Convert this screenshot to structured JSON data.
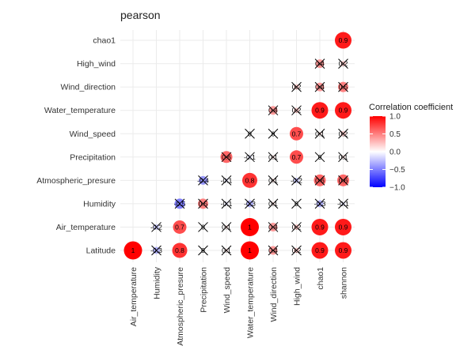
{
  "chart_data": {
    "type": "correlation-matrix",
    "title": "pearson",
    "x_variables": [
      "Air_temperature",
      "Humidity",
      "Atmospheric_presure",
      "Precipitation",
      "Wind_speed",
      "Water_temperature",
      "Wind_direction",
      "High_wind",
      "chao1",
      "shannon"
    ],
    "y_variables": [
      "Latitude",
      "Air_temperature",
      "Humidity",
      "Atmospheric_presure",
      "Precipitation",
      "Wind_speed",
      "Water_temperature",
      "Wind_direction",
      "High_wind",
      "chao1"
    ],
    "cells": [
      {
        "y": "Latitude",
        "x": "Air_temperature",
        "r": 1.0,
        "label": "1",
        "crossed": false
      },
      {
        "y": "Latitude",
        "x": "Humidity",
        "r": -0.3,
        "label": "-0.3",
        "crossed": true
      },
      {
        "y": "Latitude",
        "x": "Atmospheric_presure",
        "r": 0.8,
        "label": "0.8",
        "crossed": false
      },
      {
        "y": "Latitude",
        "x": "Precipitation",
        "r": 0.0,
        "label": "0",
        "crossed": true
      },
      {
        "y": "Latitude",
        "x": "Wind_speed",
        "r": 0.1,
        "label": "0.1",
        "crossed": true
      },
      {
        "y": "Latitude",
        "x": "Water_temperature",
        "r": 1.0,
        "label": "1",
        "crossed": false
      },
      {
        "y": "Latitude",
        "x": "Wind_direction",
        "r": 0.4,
        "label": "0.4",
        "crossed": true
      },
      {
        "y": "Latitude",
        "x": "High_wind",
        "r": 0.2,
        "label": "0.2",
        "crossed": true
      },
      {
        "y": "Latitude",
        "x": "chao1",
        "r": 0.9,
        "label": "0.9",
        "crossed": false
      },
      {
        "y": "Latitude",
        "x": "shannon",
        "r": 0.9,
        "label": "0.9",
        "crossed": false
      },
      {
        "y": "Air_temperature",
        "x": "Humidity",
        "r": -0.2,
        "label": "-0.2",
        "crossed": true
      },
      {
        "y": "Air_temperature",
        "x": "Atmospheric_presure",
        "r": 0.7,
        "label": "0.7",
        "crossed": false
      },
      {
        "y": "Air_temperature",
        "x": "Precipitation",
        "r": 0.0,
        "label": "0",
        "crossed": true
      },
      {
        "y": "Air_temperature",
        "x": "Wind_speed",
        "r": 0.1,
        "label": "0.1",
        "crossed": true
      },
      {
        "y": "Air_temperature",
        "x": "Water_temperature",
        "r": 1.0,
        "label": "1",
        "crossed": false
      },
      {
        "y": "Air_temperature",
        "x": "Wind_direction",
        "r": 0.4,
        "label": "0.4",
        "crossed": true
      },
      {
        "y": "Air_temperature",
        "x": "High_wind",
        "r": 0.2,
        "label": "0.2",
        "crossed": true
      },
      {
        "y": "Air_temperature",
        "x": "chao1",
        "r": 0.9,
        "label": "0.9",
        "crossed": false
      },
      {
        "y": "Air_temperature",
        "x": "shannon",
        "r": 0.9,
        "label": "0.9",
        "crossed": false
      },
      {
        "y": "Humidity",
        "x": "Atmospheric_presure",
        "r": -0.5,
        "label": "-0.5",
        "crossed": true
      },
      {
        "y": "Humidity",
        "x": "Precipitation",
        "r": 0.5,
        "label": "0.5",
        "crossed": true
      },
      {
        "y": "Humidity",
        "x": "Wind_speed",
        "r": -0.1,
        "label": "-0.1",
        "crossed": true
      },
      {
        "y": "Humidity",
        "x": "Water_temperature",
        "r": -0.3,
        "label": "-0.3",
        "crossed": true
      },
      {
        "y": "Humidity",
        "x": "Wind_direction",
        "r": 0.1,
        "label": "0.1",
        "crossed": true
      },
      {
        "y": "Humidity",
        "x": "High_wind",
        "r": 0.0,
        "label": "0",
        "crossed": true
      },
      {
        "y": "Humidity",
        "x": "chao1",
        "r": -0.3,
        "label": "-0.3",
        "crossed": true
      },
      {
        "y": "Humidity",
        "x": "shannon",
        "r": -0.1,
        "label": "-0.1",
        "crossed": true
      },
      {
        "y": "Atmospheric_presure",
        "x": "Precipitation",
        "r": -0.4,
        "label": "-0.4",
        "crossed": true
      },
      {
        "y": "Atmospheric_presure",
        "x": "Wind_speed",
        "r": -0.1,
        "label": "-0.1",
        "crossed": true
      },
      {
        "y": "Atmospheric_presure",
        "x": "Water_temperature",
        "r": 0.8,
        "label": "0.8",
        "crossed": false
      },
      {
        "y": "Atmospheric_presure",
        "x": "Wind_direction",
        "r": 0.1,
        "label": "0.1",
        "crossed": true
      },
      {
        "y": "Atmospheric_presure",
        "x": "High_wind",
        "r": -0.2,
        "label": "-0.2",
        "crossed": true
      },
      {
        "y": "Atmospheric_presure",
        "x": "chao1",
        "r": 0.6,
        "label": "0.6",
        "crossed": true
      },
      {
        "y": "Atmospheric_presure",
        "x": "shannon",
        "r": 0.6,
        "label": "0.6",
        "crossed": true
      },
      {
        "y": "Precipitation",
        "x": "Wind_speed",
        "r": 0.6,
        "label": "0.6",
        "crossed": true
      },
      {
        "y": "Precipitation",
        "x": "Water_temperature",
        "r": -0.1,
        "label": "-0.1",
        "crossed": true
      },
      {
        "y": "Precipitation",
        "x": "Wind_direction",
        "r": 0.1,
        "label": "0.1",
        "crossed": true
      },
      {
        "y": "Precipitation",
        "x": "High_wind",
        "r": 0.7,
        "label": "0.7",
        "crossed": false
      },
      {
        "y": "Precipitation",
        "x": "chao1",
        "r": 0.0,
        "label": "0",
        "crossed": true
      },
      {
        "y": "Precipitation",
        "x": "shannon",
        "r": 0.1,
        "label": "0.1",
        "crossed": true
      },
      {
        "y": "Wind_speed",
        "x": "Water_temperature",
        "r": 0.0,
        "label": "0",
        "crossed": true
      },
      {
        "y": "Wind_speed",
        "x": "Wind_direction",
        "r": 0.0,
        "label": "0",
        "crossed": true
      },
      {
        "y": "Wind_speed",
        "x": "High_wind",
        "r": 0.7,
        "label": "0.7",
        "crossed": false
      },
      {
        "y": "Wind_speed",
        "x": "chao1",
        "r": 0.1,
        "label": "0.1",
        "crossed": true
      },
      {
        "y": "Wind_speed",
        "x": "shannon",
        "r": 0.2,
        "label": "0.2",
        "crossed": true
      },
      {
        "y": "Water_temperature",
        "x": "Wind_direction",
        "r": 0.4,
        "label": "0.4",
        "crossed": true
      },
      {
        "y": "Water_temperature",
        "x": "High_wind",
        "r": 0.2,
        "label": "0.2",
        "crossed": true
      },
      {
        "y": "Water_temperature",
        "x": "chao1",
        "r": 0.9,
        "label": "0.9",
        "crossed": false
      },
      {
        "y": "Water_temperature",
        "x": "shannon",
        "r": 0.9,
        "label": "0.9",
        "crossed": false
      },
      {
        "y": "Wind_direction",
        "x": "High_wind",
        "r": 0.2,
        "label": "0.2",
        "crossed": true
      },
      {
        "y": "Wind_direction",
        "x": "chao1",
        "r": 0.4,
        "label": "0.4",
        "crossed": true
      },
      {
        "y": "Wind_direction",
        "x": "shannon",
        "r": 0.5,
        "label": "0.5",
        "crossed": true
      },
      {
        "y": "High_wind",
        "x": "chao1",
        "r": 0.4,
        "label": "0.4",
        "crossed": true
      },
      {
        "y": "High_wind",
        "x": "shannon",
        "r": 0.2,
        "label": "0.2",
        "crossed": true
      },
      {
        "y": "chao1",
        "x": "shannon",
        "r": 0.9,
        "label": "0.9",
        "crossed": false
      }
    ],
    "legend": {
      "title": "Correlation coefficient",
      "placement": "right",
      "range": [
        -1.0,
        1.0
      ],
      "ticks": [
        "1.0",
        "0.5",
        "0.0",
        "−0.5",
        "−1.0"
      ],
      "tick_values": [
        1.0,
        0.5,
        0.0,
        -0.5,
        -1.0
      ],
      "colors": {
        "high": "#ff0000",
        "mid": "#ffffff",
        "low": "#0000ff"
      }
    },
    "grid": true
  }
}
